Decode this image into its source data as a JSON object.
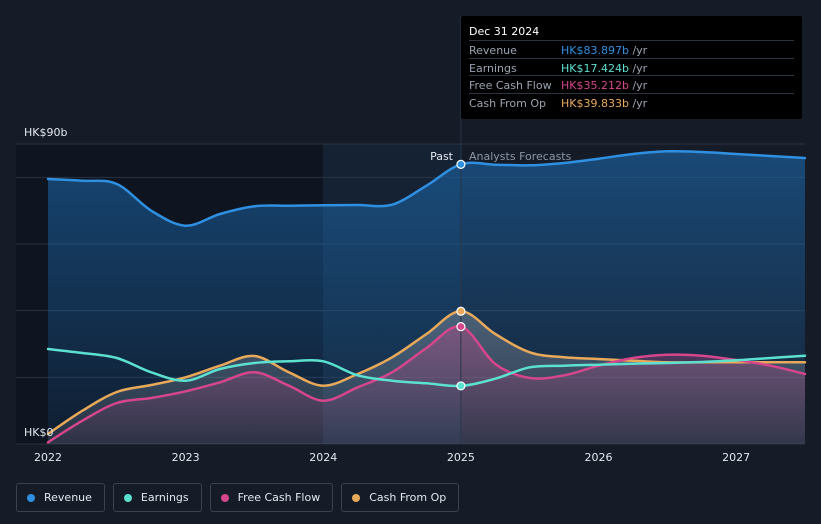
{
  "chart_data": {
    "type": "line",
    "title": "",
    "y_unit_prefix": "HK$",
    "y_top_label": "HK$90b",
    "y_bottom_label": "HK$0",
    "ylim": [
      0,
      90
    ],
    "xlim": [
      2022,
      2027.5
    ],
    "x_ticks": [
      "2022",
      "2023",
      "2024",
      "2025",
      "2026",
      "2027"
    ],
    "divider_x": 2025,
    "past_label": "Past",
    "forecast_label": "Analysts Forecasts",
    "series": [
      {
        "name": "Revenue",
        "color": "#2f8fe0",
        "filled": true,
        "x": [
          2022.0,
          2022.25,
          2022.5,
          2022.75,
          2023.0,
          2023.25,
          2023.5,
          2023.75,
          2024.0,
          2024.25,
          2024.5,
          2024.75,
          2025.0,
          2025.25,
          2025.5,
          2025.75,
          2026.0,
          2026.25,
          2026.5,
          2026.75,
          2027.0,
          2027.25,
          2027.5
        ],
        "values": [
          79.5,
          79.0,
          78.0,
          70.0,
          65.5,
          69.0,
          71.3,
          71.5,
          71.6,
          71.7,
          71.8,
          77.5,
          83.897,
          83.8,
          83.6,
          84.3,
          85.6,
          87.0,
          87.8,
          87.6,
          87.0,
          86.4,
          85.8
        ]
      },
      {
        "name": "Earnings",
        "color": "#5ce0cf",
        "filled": false,
        "x": [
          2022.0,
          2022.25,
          2022.5,
          2022.75,
          2023.0,
          2023.25,
          2023.5,
          2023.75,
          2024.0,
          2024.25,
          2024.5,
          2024.75,
          2025.0,
          2025.25,
          2025.5,
          2025.75,
          2026.0,
          2026.25,
          2026.5,
          2026.75,
          2027.0,
          2027.25,
          2027.5
        ],
        "values": [
          28.5,
          27.3,
          25.8,
          21.5,
          19.0,
          22.5,
          24.3,
          24.8,
          24.8,
          20.6,
          19.0,
          18.2,
          17.424,
          19.6,
          23.0,
          23.5,
          23.8,
          24.1,
          24.3,
          24.6,
          25.1,
          25.8,
          26.5
        ]
      },
      {
        "name": "Free Cash Flow",
        "color": "#d6468c",
        "filled": true,
        "x": [
          2022.0,
          2022.25,
          2022.5,
          2022.75,
          2023.0,
          2023.25,
          2023.5,
          2023.75,
          2024.0,
          2024.25,
          2024.5,
          2024.75,
          2025.0,
          2025.25,
          2025.5,
          2025.75,
          2026.0,
          2026.25,
          2026.5,
          2026.75,
          2027.0,
          2027.25,
          2027.5
        ],
        "values": [
          0.5,
          7.0,
          12.3,
          13.8,
          15.8,
          18.5,
          21.5,
          17.5,
          13.0,
          17.0,
          21.5,
          28.8,
          35.212,
          24.0,
          19.8,
          20.6,
          23.5,
          25.8,
          26.8,
          26.5,
          25.2,
          23.5,
          21.0
        ]
      },
      {
        "name": "Cash From Op",
        "color": "#e8a95a",
        "filled": true,
        "x": [
          2022.0,
          2022.25,
          2022.5,
          2022.75,
          2023.0,
          2023.25,
          2023.5,
          2023.75,
          2024.0,
          2024.25,
          2024.5,
          2024.75,
          2025.0,
          2025.25,
          2025.5,
          2025.75,
          2026.0,
          2026.25,
          2026.5,
          2026.75,
          2027.0,
          2027.25,
          2027.5
        ],
        "values": [
          3.0,
          10.0,
          15.6,
          17.7,
          20.0,
          23.5,
          26.4,
          21.5,
          17.5,
          21.0,
          26.0,
          33.0,
          39.833,
          33.0,
          27.5,
          26.0,
          25.5,
          25.0,
          24.5,
          24.5,
          24.5,
          24.5,
          24.5
        ]
      }
    ],
    "tooltip_points": [
      {
        "series": "Revenue",
        "x": 2025,
        "y": 83.897
      },
      {
        "series": "Earnings",
        "x": 2025,
        "y": 17.424
      },
      {
        "series": "Free Cash Flow",
        "x": 2025,
        "y": 35.212
      },
      {
        "series": "Cash From Op",
        "x": 2025,
        "y": 39.833
      }
    ]
  },
  "tooltip": {
    "date": "Dec 31 2024",
    "unit": "/yr",
    "rows": [
      {
        "label": "Revenue",
        "value": "HK$83.897b",
        "color": "#2f8fe0"
      },
      {
        "label": "Earnings",
        "value": "HK$17.424b",
        "color": "#5ce0cf"
      },
      {
        "label": "Free Cash Flow",
        "value": "HK$35.212b",
        "color": "#d6468c"
      },
      {
        "label": "Cash From Op",
        "value": "HK$39.833b",
        "color": "#e8a95a"
      }
    ]
  },
  "legend": [
    {
      "label": "Revenue",
      "color": "#2f8fe0"
    },
    {
      "label": "Earnings",
      "color": "#5ce0cf"
    },
    {
      "label": "Free Cash Flow",
      "color": "#d6468c"
    },
    {
      "label": "Cash From Op",
      "color": "#e8a95a"
    }
  ]
}
